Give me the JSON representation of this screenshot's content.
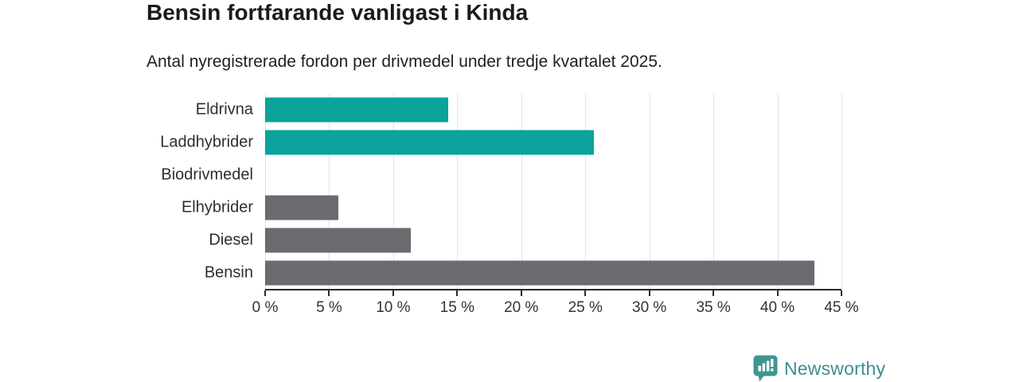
{
  "header": {
    "title": "Bensin fortfarande vanligast i Kinda",
    "subtitle": "Antal nyregistrerade fordon per drivmedel under tredje kvartalet 2025."
  },
  "chart_data": {
    "type": "bar",
    "orientation": "horizontal",
    "title": "Bensin fortfarande vanligast i Kinda",
    "subtitle": "Antal nyregistrerade fordon per drivmedel under tredje kvartalet 2025.",
    "categories": [
      "Eldrivna",
      "Laddhybrider",
      "Biodrivmedel",
      "Elhybrider",
      "Diesel",
      "Bensin"
    ],
    "values": [
      14.3,
      25.7,
      0,
      5.7,
      11.4,
      42.9
    ],
    "unit": "%",
    "bar_colors": [
      "#0ba29b",
      "#0ba29b",
      "#6a6a6f",
      "#6a6a6f",
      "#6a6a6f",
      "#6a6a6f"
    ],
    "xlabel": "",
    "ylabel": "",
    "xlim": [
      0,
      45
    ],
    "x_tick_values": [
      0,
      5,
      10,
      15,
      20,
      25,
      30,
      35,
      40,
      45
    ],
    "x_tick_labels": [
      "0 %",
      "5 %",
      "10 %",
      "15 %",
      "20 %",
      "25 %",
      "30 %",
      "35 %",
      "40 %",
      "45 %"
    ],
    "grid": "vertical-gridlines-on",
    "legend": "none"
  },
  "branding": {
    "logo_text": "Newsworthy",
    "logo_icon": "bar-chart-speech-bubble",
    "logo_icon_color": "#3f9690",
    "logo_text_color": "#3e8d91"
  },
  "colors": {
    "accent_teal": "#0ba29b",
    "neutral_gray": "#6a6a6f",
    "gridline": "#e3e3e3",
    "axis": "#2a2a2a",
    "title_text": "#1b1b1b",
    "background": "#ffffff"
  }
}
